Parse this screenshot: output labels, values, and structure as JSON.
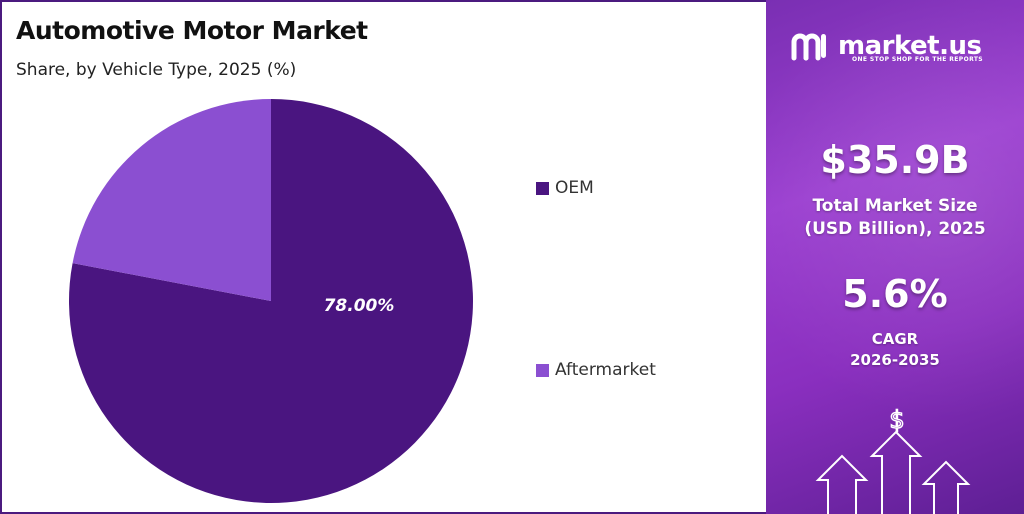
{
  "chart_data": {
    "type": "pie",
    "title": "Automotive Motor Market",
    "subtitle": "Share, by Vehicle Type, 2025 (%)",
    "categories": [
      "OEM",
      "Aftermarket"
    ],
    "values": [
      78.0,
      22.0
    ],
    "colors": [
      "#4a1580",
      "#8b4fd1"
    ],
    "data_labels": [
      "78.00%",
      ""
    ],
    "legend_position": "right"
  },
  "side_panel": {
    "brand_name": "market.us",
    "brand_tagline": "ONE STOP SHOP FOR THE REPORTS",
    "market_size_value": "$35.9B",
    "market_size_label_line1": "Total Market Size",
    "market_size_label_line2": "(USD Billion), 2025",
    "cagr_value": "5.6%",
    "cagr_label_line1": "CAGR",
    "cagr_label_line2": "2026-2035",
    "background_color": "#8a35c4",
    "deco_icon": "dollar-arrows-icon",
    "deco_symbol": "$"
  }
}
